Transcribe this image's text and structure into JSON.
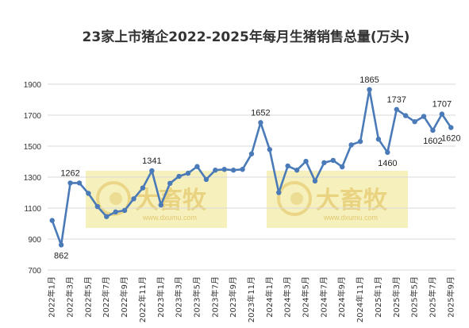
{
  "chart_data": {
    "type": "line",
    "title": "23家上市猪企2022-2025年每月生猪销售总量(万头)",
    "ylim": [
      700,
      1900
    ],
    "yticks": [
      700,
      900,
      1100,
      1300,
      1500,
      1700,
      1900
    ],
    "grid": true,
    "legend": "none",
    "line_color": "#4a7ab7",
    "x": [
      "2022年1月",
      "2022年2月",
      "2022年3月",
      "2022年4月",
      "2022年5月",
      "2022年6月",
      "2022年7月",
      "2022年8月",
      "2022年9月",
      "2022年10月",
      "2022年11月",
      "2022年12月",
      "2023年1月",
      "2023年2月",
      "2023年3月",
      "2023年4月",
      "2023年5月",
      "2023年6月",
      "2023年7月",
      "2023年8月",
      "2023年9月",
      "2023年10月",
      "2023年11月",
      "2023年12月",
      "2024年1月",
      "2024年2月",
      "2024年3月",
      "2024年4月",
      "2024年5月",
      "2024年6月",
      "2024年7月",
      "2024年8月",
      "2024年9月",
      "2024年10月",
      "2024年11月",
      "2024年12月",
      "2025年1月",
      "2025年2月",
      "2025年3月",
      "2025年4月",
      "2025年5月",
      "2025年6月",
      "2025年7月",
      "2025年8月",
      "2025年9月"
    ],
    "xtick_labels": [
      "2022年1月",
      "2022年3月",
      "2022年5月",
      "2022年7月",
      "2022年9月",
      "2022年11月",
      "2023年1月",
      "2023年3月",
      "2023年5月",
      "2023年7月",
      "2023年9月",
      "2023年11月",
      "2024年1月",
      "2024年3月",
      "2024年5月",
      "2024年7月",
      "2024年9月",
      "2024年11月",
      "2025年1月",
      "2025年3月",
      "2025年5月",
      "2025年7月",
      "2025年9月"
    ],
    "values": [
      1020,
      862,
      1262,
      1262,
      1195,
      1110,
      1045,
      1075,
      1085,
      1160,
      1230,
      1341,
      1120,
      1260,
      1305,
      1325,
      1368,
      1285,
      1345,
      1350,
      1345,
      1350,
      1450,
      1652,
      1478,
      1200,
      1372,
      1345,
      1402,
      1275,
      1393,
      1408,
      1366,
      1508,
      1530,
      1865,
      1545,
      1460,
      1737,
      1697,
      1658,
      1692,
      1602,
      1707,
      1620
    ],
    "data_labels": [
      {
        "index": 1,
        "label": "862",
        "pos": "below"
      },
      {
        "index": 2,
        "label": "1262",
        "pos": "above"
      },
      {
        "index": 11,
        "label": "1341",
        "pos": "above"
      },
      {
        "index": 23,
        "label": "1652",
        "pos": "above"
      },
      {
        "index": 35,
        "label": "1865",
        "pos": "above"
      },
      {
        "index": 37,
        "label": "1460",
        "pos": "below"
      },
      {
        "index": 38,
        "label": "1737",
        "pos": "above"
      },
      {
        "index": 42,
        "label": "1602",
        "pos": "below"
      },
      {
        "index": 43,
        "label": "1707",
        "pos": "above"
      },
      {
        "index": 44,
        "label": "1620",
        "pos": "below"
      }
    ]
  },
  "watermark": {
    "text": "大畜牧",
    "sub": "www.dxumu.com"
  }
}
